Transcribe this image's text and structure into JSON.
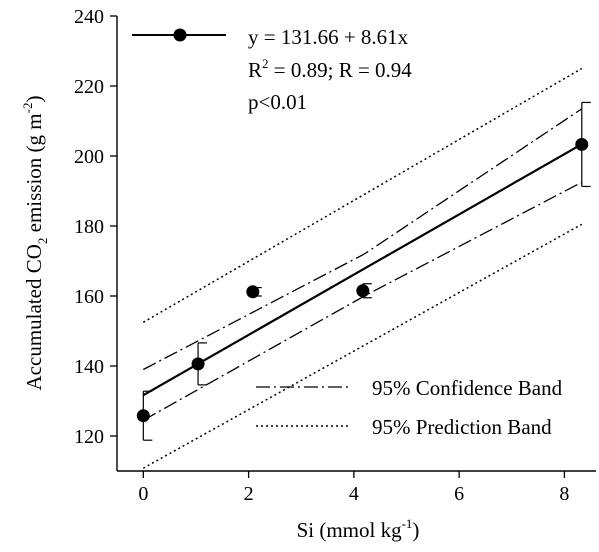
{
  "chart_data": {
    "type": "scatter",
    "xlabel": {
      "main": "Si (mmol kg",
      "sup": "-1",
      "tail": ")"
    },
    "ylabel": {
      "main": "Accumulated CO",
      "sub": "2",
      "mid": " emission (g m",
      "sup": "-2",
      "tail": ")"
    },
    "xlim": [
      -0.5,
      8.6
    ],
    "ylim": [
      110,
      240
    ],
    "xticks": [
      0,
      2,
      4,
      6,
      8
    ],
    "yticks": [
      120,
      140,
      160,
      180,
      200,
      220,
      240
    ],
    "points": [
      {
        "x": 0,
        "y": 125.8,
        "err": 7
      },
      {
        "x": 1.04,
        "y": 140.6,
        "err": 6
      },
      {
        "x": 2.08,
        "y": 161.2,
        "err": 1.2
      },
      {
        "x": 4.17,
        "y": 161.5,
        "err": 2
      },
      {
        "x": 8.33,
        "y": 203.3,
        "err": 12
      }
    ],
    "regression": {
      "intercept": 131.66,
      "slope": 8.61,
      "x_range": [
        0,
        8.33
      ]
    },
    "confidence_band": {
      "upper": [
        [
          0,
          139
        ],
        [
          4.2,
          172
        ],
        [
          8.33,
          213.5
        ]
      ],
      "lower": [
        [
          0,
          124.5
        ],
        [
          4.2,
          160
        ],
        [
          8.33,
          192.5
        ]
      ]
    },
    "prediction_band": {
      "upper": [
        [
          0,
          152.5
        ],
        [
          8.33,
          225
        ]
      ],
      "lower": [
        [
          0,
          110.8
        ],
        [
          8.33,
          180.5
        ]
      ]
    },
    "legend": {
      "equation": "y = 131.66 + 8.61x",
      "r2_prefix": "R",
      "r2_sup": "2",
      "r2_suffix": " = 0.89; R = 0.94",
      "pvalue": "p<0.01",
      "confidence": "95% Confidence Band",
      "prediction": "95% Prediction Band"
    }
  }
}
